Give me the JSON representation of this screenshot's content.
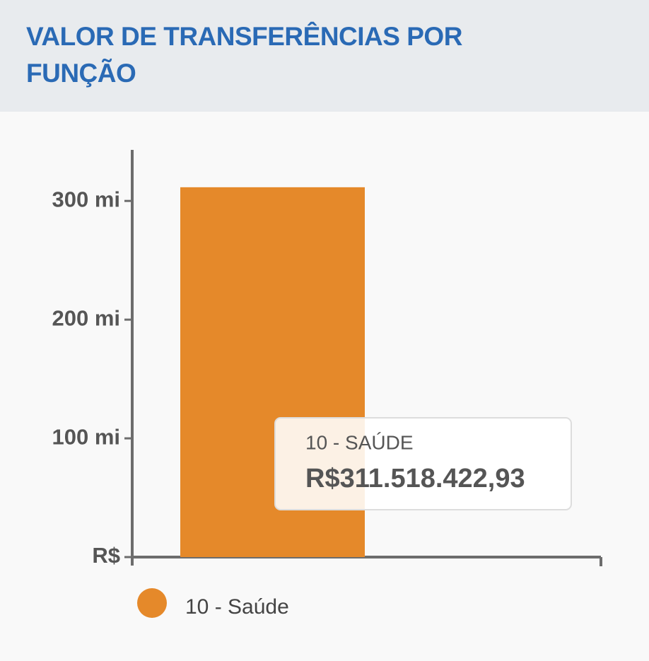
{
  "chart_data": {
    "type": "bar",
    "title": "VALOR DE TRANSFERÊNCIAS POR FUNÇÃO",
    "categories": [
      null
    ],
    "series": [
      {
        "name": "10 - Saúde",
        "color": "#e5892a",
        "values": [
          311518422.93
        ],
        "value_labels": [
          "R$311.518.422,93"
        ]
      }
    ],
    "tooltip_title": "10 - SAÚDE",
    "ylim": [
      0,
      343000000
    ],
    "yticks": [
      {
        "value": 0,
        "label": "R$"
      },
      {
        "value": 100000000,
        "label": "100 mi"
      },
      {
        "value": 200000000,
        "label": "200 mi"
      },
      {
        "value": 300000000,
        "label": "300 mi"
      }
    ]
  }
}
